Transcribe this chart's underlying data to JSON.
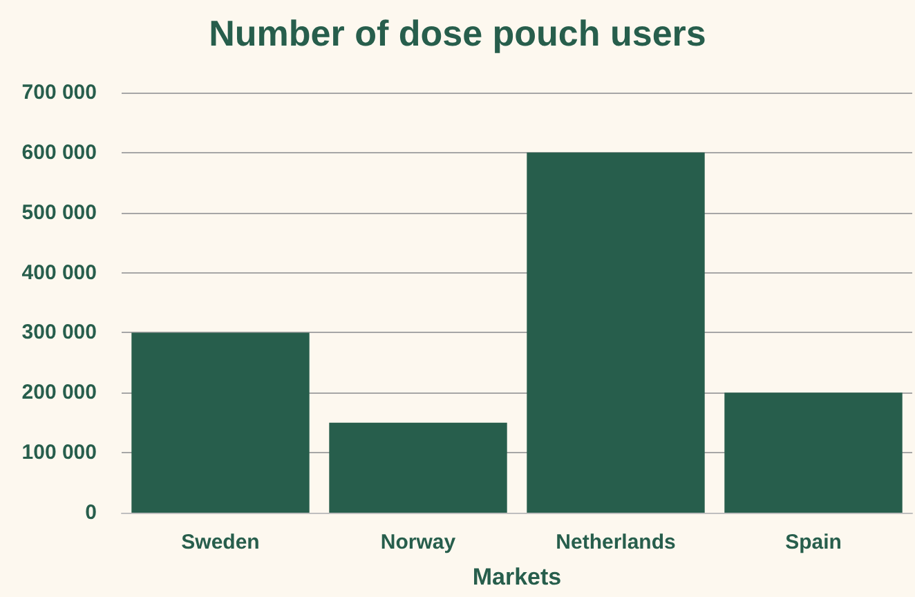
{
  "chart_data": {
    "type": "bar",
    "title": "Number of dose pouch users",
    "xlabel": "Markets",
    "categories": [
      "Sweden",
      "Norway",
      "Netherlands",
      "Spain"
    ],
    "values": [
      300000,
      150000,
      600000,
      200000
    ],
    "color": "#275e4c",
    "ylim": [
      0,
      700000
    ],
    "yticks": [
      {
        "value": 0,
        "label": "0"
      },
      {
        "value": 100000,
        "label": "100 000"
      },
      {
        "value": 200000,
        "label": "200 000"
      },
      {
        "value": 300000,
        "label": "300 000"
      },
      {
        "value": 400000,
        "label": "400 000"
      },
      {
        "value": 500000,
        "label": "500 000"
      },
      {
        "value": 600000,
        "label": "600 000"
      },
      {
        "value": 700000,
        "label": "700 000"
      }
    ],
    "grid": "y"
  }
}
